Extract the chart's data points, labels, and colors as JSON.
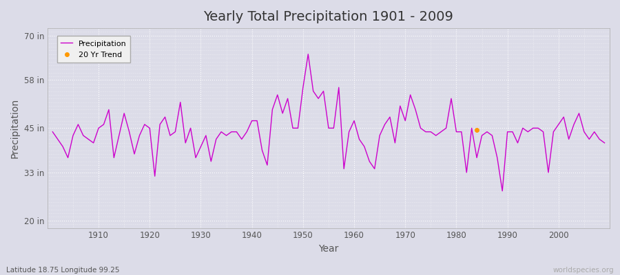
{
  "title": "Yearly Total Precipitation 1901 - 2009",
  "xlabel": "Year",
  "ylabel": "Precipitation",
  "subtitle": "Latitude 18.75 Longitude 99.25",
  "watermark": "worldspecies.org",
  "legend_labels": [
    "Precipitation",
    "20 Yr Trend"
  ],
  "legend_colors": [
    "#cc00cc",
    "#ff9900"
  ],
  "line_color": "#cc00cc",
  "trend_color": "#ff9900",
  "bg_color": "#dcdce8",
  "plot_bg_color": "#dcdce8",
  "grid_color": "#ffffff",
  "yticks": [
    20,
    33,
    45,
    58,
    70
  ],
  "ytick_labels": [
    "20 in",
    "33 in",
    "45 in",
    "58 in",
    "70 in"
  ],
  "xticks": [
    1910,
    1920,
    1930,
    1940,
    1950,
    1960,
    1970,
    1980,
    1990,
    2000
  ],
  "xlim": [
    1900,
    2010
  ],
  "ylim": [
    18,
    72
  ],
  "years": [
    1901,
    1902,
    1903,
    1904,
    1905,
    1906,
    1907,
    1908,
    1909,
    1910,
    1911,
    1912,
    1913,
    1914,
    1915,
    1916,
    1917,
    1918,
    1919,
    1920,
    1921,
    1922,
    1923,
    1924,
    1925,
    1926,
    1927,
    1928,
    1929,
    1930,
    1931,
    1932,
    1933,
    1934,
    1935,
    1936,
    1937,
    1938,
    1939,
    1940,
    1941,
    1942,
    1943,
    1944,
    1945,
    1946,
    1947,
    1948,
    1949,
    1950,
    1951,
    1952,
    1953,
    1954,
    1955,
    1956,
    1957,
    1958,
    1959,
    1960,
    1961,
    1962,
    1963,
    1964,
    1965,
    1966,
    1967,
    1968,
    1969,
    1970,
    1971,
    1972,
    1973,
    1974,
    1975,
    1976,
    1977,
    1978,
    1979,
    1980,
    1981,
    1982,
    1983,
    1984,
    1985,
    1986,
    1987,
    1988,
    1989,
    1990,
    1991,
    1992,
    1993,
    1994,
    1995,
    1996,
    1997,
    1998,
    1999,
    2000,
    2001,
    2002,
    2003,
    2004,
    2005,
    2006,
    2007,
    2008,
    2009
  ],
  "precipitation": [
    44,
    42,
    40,
    37,
    43,
    46,
    43,
    42,
    41,
    45,
    46,
    50,
    37,
    43,
    49,
    44,
    38,
    43,
    46,
    45,
    32,
    46,
    48,
    43,
    44,
    52,
    41,
    45,
    37,
    40,
    43,
    36,
    42,
    44,
    43,
    44,
    44,
    42,
    44,
    47,
    47,
    39,
    35,
    50,
    54,
    49,
    53,
    45,
    45,
    56,
    65,
    55,
    53,
    55,
    45,
    45,
    56,
    34,
    44,
    47,
    42,
    40,
    36,
    34,
    43,
    46,
    48,
    41,
    51,
    47,
    54,
    50,
    45,
    44,
    44,
    43,
    44,
    45,
    53,
    44,
    44,
    33,
    45,
    37,
    43,
    44,
    43,
    37,
    28,
    44,
    44,
    41,
    45,
    44,
    45,
    45,
    44,
    33,
    44,
    46,
    48,
    42,
    46,
    49,
    44,
    42,
    44,
    42,
    41
  ],
  "trend_dot": {
    "year": 1984,
    "value": 44.5
  }
}
